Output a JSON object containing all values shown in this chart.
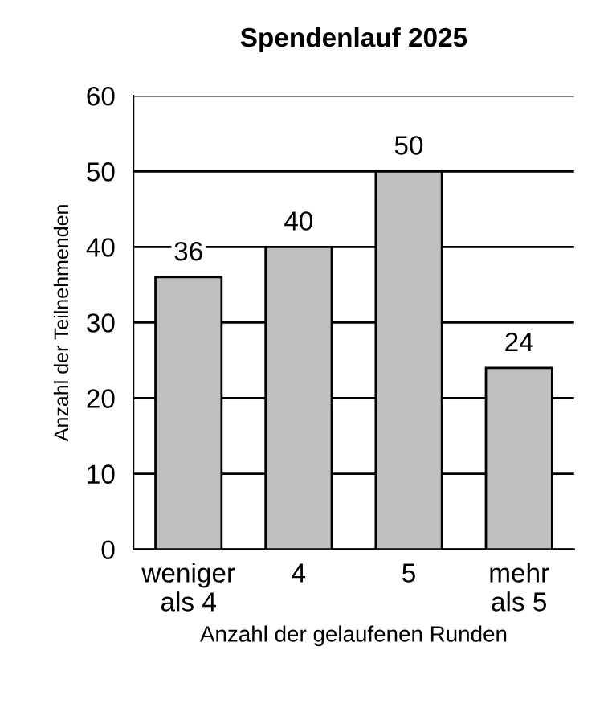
{
  "chart_data": {
    "type": "bar",
    "title": "Spendenlauf 2025",
    "categories": [
      "weniger\nals 4",
      "4",
      "5",
      "mehr\nals 5"
    ],
    "values": [
      36,
      40,
      50,
      24
    ],
    "color": "#c0c0c0",
    "xlabel": "Anzahl der gelaufenen Runden",
    "ylabel": "Anzahl der Teilnehmenden",
    "ylim": [
      0,
      60
    ],
    "yticks": [
      0,
      10,
      20,
      30,
      40,
      50,
      60
    ],
    "grid": "y",
    "data_labels": true
  }
}
